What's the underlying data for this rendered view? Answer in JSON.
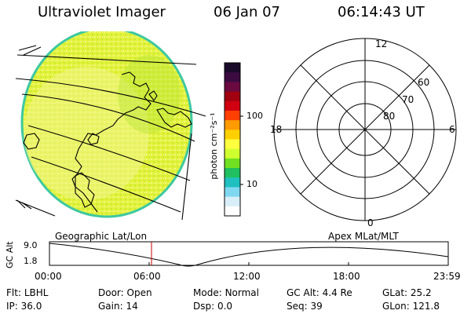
{
  "header": {
    "instrument": "Ultraviolet Imager",
    "date": "06 Jan 07",
    "time": "06:14:43 UT"
  },
  "colorbar": {
    "unit_label": "photon cm⁻²s⁻¹",
    "ticks": [
      "100",
      "10"
    ],
    "colors": [
      "#1a0a2a",
      "#3a0a40",
      "#6a0a40",
      "#a00010",
      "#d00010",
      "#ff4000",
      "#ff9a00",
      "#ffd000",
      "#ffff40",
      "#d0ff30",
      "#70e020",
      "#20c060",
      "#20c0c0",
      "#80d8f0",
      "#d8eef8",
      "#ffffff"
    ]
  },
  "earth_image": {
    "label": "Geographic Lat/Lon",
    "fill_color": "#e0f040",
    "edge_color": "#3ec8a0"
  },
  "polar_plot": {
    "label": "Apex MLat/MLT",
    "lat_labels": [
      "60",
      "70",
      "80"
    ],
    "mlt_labels": {
      "top": "12",
      "left": "18",
      "right": "6",
      "bottom": "0"
    }
  },
  "altitude_plot": {
    "ylabel": "GC Alt",
    "y_ticks": [
      "9.0",
      "1.8"
    ],
    "y_range": [
      1.8,
      9.0
    ],
    "x_ticks": [
      "00:00",
      "06:00",
      "12:00",
      "18:00",
      "23:59"
    ],
    "current_time_marker_color": "#cc0000"
  },
  "status": {
    "row1": [
      {
        "key": "Flt:",
        "value": "LBHL"
      },
      {
        "key": "Door:",
        "value": "Open"
      },
      {
        "key": "Mode:",
        "value": "Normal"
      },
      {
        "key": "GC Alt:",
        "value": "4.4 Re"
      },
      {
        "key": "GLat:",
        "value": "25.2"
      }
    ],
    "row2": [
      {
        "key": "IP:",
        "value": "36.0"
      },
      {
        "key": "Gain:",
        "value": "14"
      },
      {
        "key": "Dsp:",
        "value": "0.0"
      },
      {
        "key": "Seq:",
        "value": "39"
      },
      {
        "key": "GLon:",
        "value": "121.8"
      }
    ]
  }
}
